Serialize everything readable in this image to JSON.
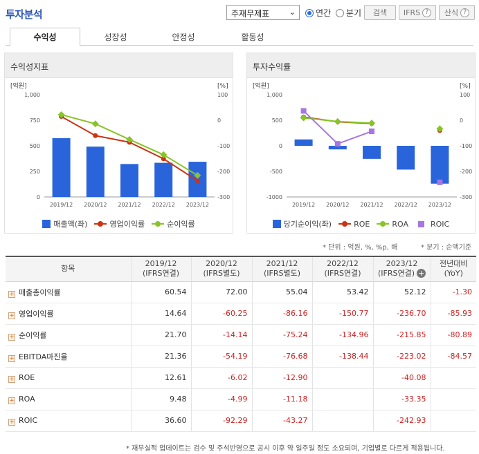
{
  "header": {
    "title": "투자분석",
    "select_value": "주재무제표",
    "radio_annual": "연간",
    "radio_quarter": "분기",
    "search_btn": "검색",
    "ifrs_btn": "IFRS",
    "formula_btn": "산식"
  },
  "tabs": [
    "수익성",
    "성장성",
    "안정성",
    "활동성"
  ],
  "colors": {
    "bar": "#2a64db",
    "red_line": "#cc3311",
    "green_line": "#88c425",
    "purple_line": "#a577e0",
    "negative_text": "#cc2222"
  },
  "chart_data": [
    {
      "type": "bar",
      "title": "수익성지표",
      "ylabel_left": "[억원]",
      "ylabel_right": "[%]",
      "categories": [
        "2019/12",
        "2020/12",
        "2021/12",
        "2022/12",
        "2023/12"
      ],
      "ylim_left": [
        0,
        1000
      ],
      "yticks_left": [
        "1,000",
        "750",
        "500",
        "250",
        "0"
      ],
      "ylim_right": [
        -300,
        100
      ],
      "yticks_right": [
        "100",
        "0",
        "-100",
        "-200",
        "-300"
      ],
      "series": [
        {
          "name": "매출액(좌)",
          "type": "bar",
          "axis": "left",
          "values": [
            575,
            492,
            322,
            334,
            344
          ]
        },
        {
          "name": "영업이익률",
          "type": "line",
          "axis": "right",
          "values": [
            14.64,
            -60.25,
            -86.16,
            -150.77,
            -236.7
          ]
        },
        {
          "name": "순이익률",
          "type": "line",
          "axis": "right",
          "values": [
            21.7,
            -14.14,
            -75.24,
            -134.96,
            -215.85
          ]
        }
      ]
    },
    {
      "type": "bar",
      "title": "투자수익률",
      "ylabel_left": "[억원]",
      "ylabel_right": "[%]",
      "categories": [
        "2019/12",
        "2020/12",
        "2021/12",
        "2022/12",
        "2023/12"
      ],
      "ylim_left": [
        -1000,
        1000
      ],
      "yticks_left": [
        "1,000",
        "500",
        "0",
        "-500",
        "-1000"
      ],
      "ylim_right": [
        -300,
        100
      ],
      "yticks_right": [
        "100",
        "0",
        "-100",
        "-200",
        "-300"
      ],
      "series": [
        {
          "name": "당기순이익(좌)",
          "type": "bar",
          "axis": "left",
          "values": [
            125,
            -70,
            -255,
            -465,
            -740
          ]
        },
        {
          "name": "ROE",
          "type": "line",
          "axis": "right",
          "values": [
            12.61,
            -6.02,
            -12.9,
            null,
            -40.08
          ]
        },
        {
          "name": "ROA",
          "type": "line",
          "axis": "right",
          "values": [
            9.48,
            -4.99,
            -11.18,
            null,
            -33.35
          ]
        },
        {
          "name": "ROIC",
          "type": "line",
          "axis": "right",
          "values": [
            36.6,
            -92.29,
            -43.27,
            null,
            -242.93
          ]
        }
      ]
    }
  ],
  "notes": {
    "unit": "* 단위 : 억원, %, %p, 배",
    "quarter": "* 분기 : 순액기준"
  },
  "table": {
    "headers": [
      "항목",
      "2019/12\n(IFRS연결)",
      "2020/12\n(IFRS별도)",
      "2021/12\n(IFRS별도)",
      "2022/12\n(IFRS연결)",
      "2023/12\n(IFRS연결)",
      "전년대비\n(YoY)"
    ],
    "rows": [
      {
        "label": "매출총이익률",
        "values": [
          "60.54",
          "72.00",
          "55.04",
          "53.42",
          "52.12",
          "-1.30"
        ]
      },
      {
        "label": "영업이익률",
        "values": [
          "14.64",
          "-60.25",
          "-86.16",
          "-150.77",
          "-236.70",
          "-85.93"
        ]
      },
      {
        "label": "순이익률",
        "values": [
          "21.70",
          "-14.14",
          "-75.24",
          "-134.96",
          "-215.85",
          "-80.89"
        ]
      },
      {
        "label": "EBITDA마진율",
        "values": [
          "21.36",
          "-54.19",
          "-76.68",
          "-138.44",
          "-223.02",
          "-84.57"
        ]
      },
      {
        "label": "ROE",
        "values": [
          "12.61",
          "-6.02",
          "-12.90",
          "",
          "-40.08",
          ""
        ]
      },
      {
        "label": "ROA",
        "values": [
          "9.48",
          "-4.99",
          "-11.18",
          "",
          "-33.35",
          ""
        ]
      },
      {
        "label": "ROIC",
        "values": [
          "36.60",
          "-92.29",
          "-43.27",
          "",
          "-242.93",
          ""
        ]
      }
    ]
  },
  "footer": "* 재무실적 업데이트는 검수 및 주석반영으로 공시 이후 약 일주일 정도 소요되며, 기업별로 다르게 적용됩니다."
}
